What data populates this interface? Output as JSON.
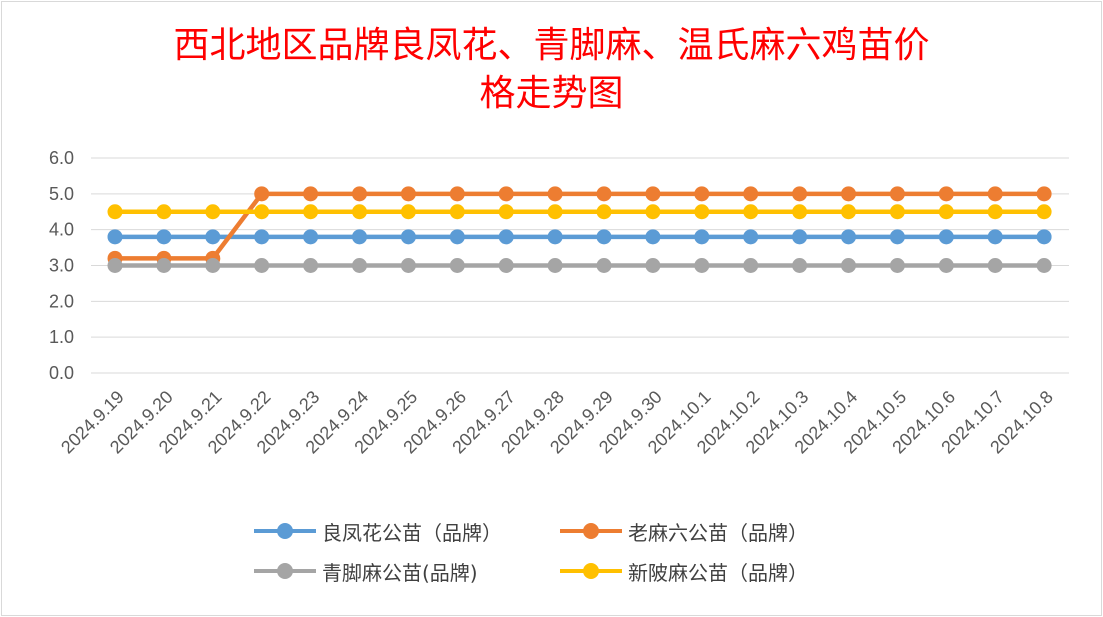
{
  "chart_data": {
    "type": "line",
    "title_lines": [
      "西北地区品牌良凤花、青脚麻、温氏麻六鸡苗价",
      "格走势图"
    ],
    "x": [
      "2024.9.19",
      "2024.9.20",
      "2024.9.21",
      "2024.9.22",
      "2024.9.23",
      "2024.9.24",
      "2024.9.25",
      "2024.9.26",
      "2024.9.27",
      "2024.9.28",
      "2024.9.29",
      "2024.9.30",
      "2024.10.1",
      "2024.10.2",
      "2024.10.3",
      "2024.10.4",
      "2024.10.5",
      "2024.10.6",
      "2024.10.7",
      "2024.10.8"
    ],
    "yticks": [
      "0.0",
      "1.0",
      "2.0",
      "3.0",
      "4.0",
      "5.0",
      "6.0"
    ],
    "ylim": [
      0,
      6
    ],
    "grid": true,
    "legend_position": "bottom",
    "series": [
      {
        "name": "良凤花公苗（品牌）",
        "color": "#5b9bd5",
        "values": [
          3.8,
          3.8,
          3.8,
          3.8,
          3.8,
          3.8,
          3.8,
          3.8,
          3.8,
          3.8,
          3.8,
          3.8,
          3.8,
          3.8,
          3.8,
          3.8,
          3.8,
          3.8,
          3.8,
          3.8
        ]
      },
      {
        "name": "老麻六公苗（品牌）",
        "color": "#ed7d31",
        "values": [
          3.2,
          3.2,
          3.2,
          5.0,
          5.0,
          5.0,
          5.0,
          5.0,
          5.0,
          5.0,
          5.0,
          5.0,
          5.0,
          5.0,
          5.0,
          5.0,
          5.0,
          5.0,
          5.0,
          5.0
        ]
      },
      {
        "name": "青脚麻公苗(品牌)",
        "color": "#a5a5a5",
        "values": [
          3.0,
          3.0,
          3.0,
          3.0,
          3.0,
          3.0,
          3.0,
          3.0,
          3.0,
          3.0,
          3.0,
          3.0,
          3.0,
          3.0,
          3.0,
          3.0,
          3.0,
          3.0,
          3.0,
          3.0
        ]
      },
      {
        "name": "新陂麻公苗（品牌）",
        "color": "#ffc000",
        "values": [
          4.5,
          4.5,
          4.5,
          4.5,
          4.5,
          4.5,
          4.5,
          4.5,
          4.5,
          4.5,
          4.5,
          4.5,
          4.5,
          4.5,
          4.5,
          4.5,
          4.5,
          4.5,
          4.5,
          4.5
        ]
      }
    ]
  }
}
